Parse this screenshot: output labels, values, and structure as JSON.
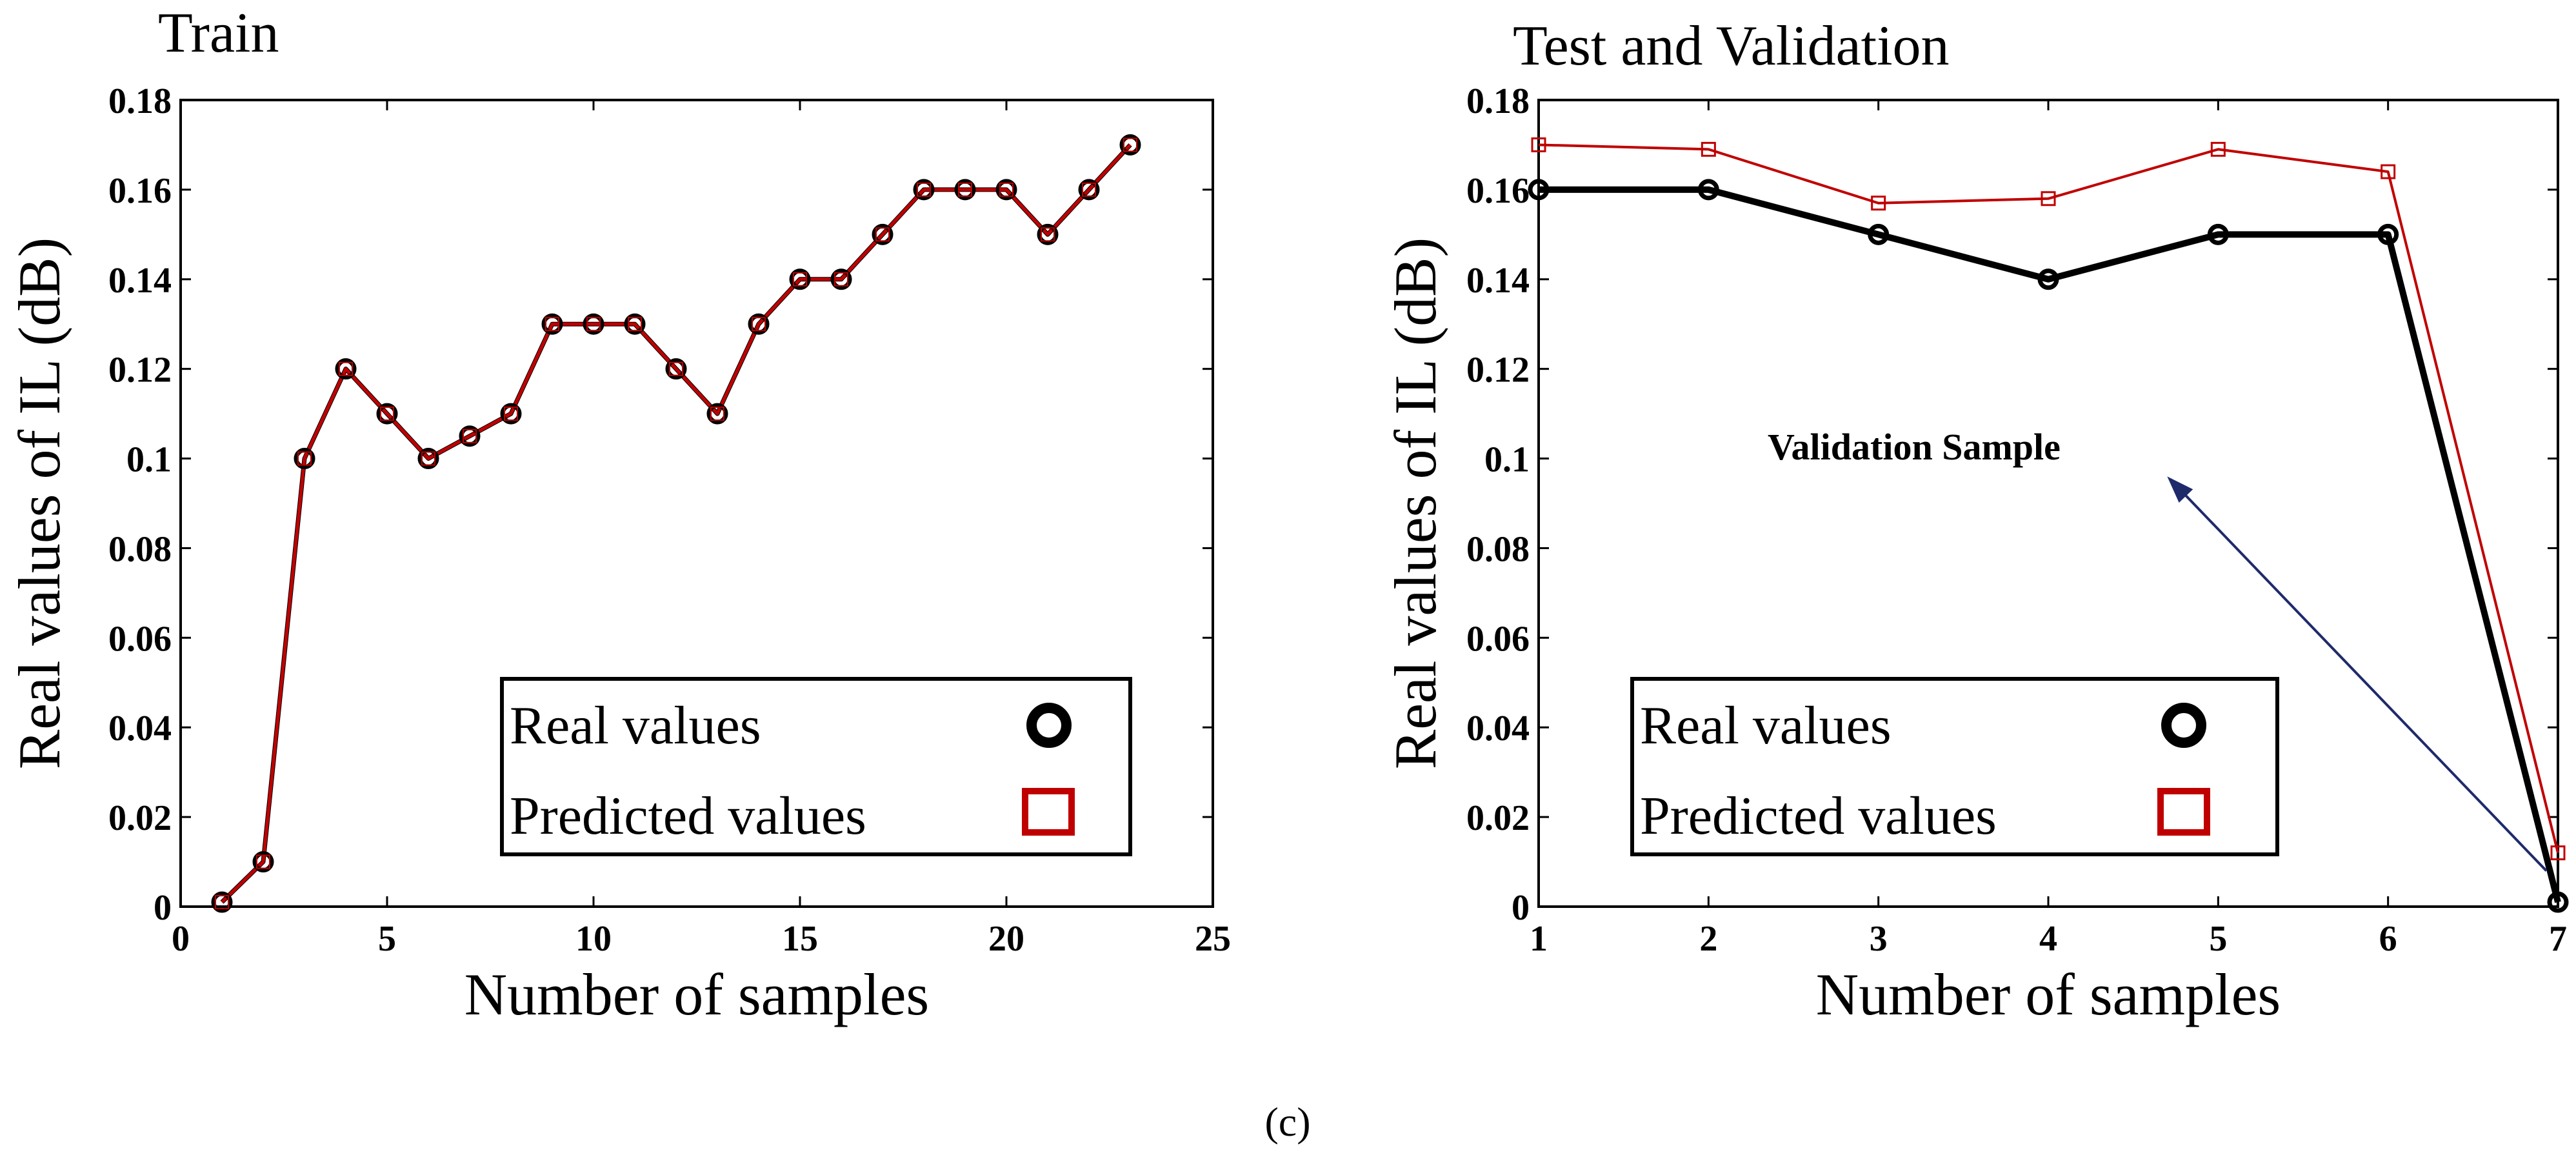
{
  "figure": {
    "caption": "(c)"
  },
  "colors": {
    "real": "#000000",
    "predicted": "#c00000",
    "arrow": "#1f2a6b"
  },
  "chart_data": [
    {
      "type": "line",
      "title": "Train",
      "xlabel": "Number of samples",
      "ylabel": "Real values of  IL (dB)",
      "xlim": [
        0,
        25
      ],
      "ylim": [
        0,
        0.18
      ],
      "xticks": [
        "0",
        "5",
        "10",
        "15",
        "20",
        "25"
      ],
      "xtick_values": [
        0,
        5,
        10,
        15,
        20,
        25
      ],
      "yticks": [
        "0",
        "0.02",
        "0.04",
        "0.06",
        "0.08",
        "0.1",
        "0.12",
        "0.14",
        "0.16",
        "0.18"
      ],
      "ytick_values": [
        0,
        0.02,
        0.04,
        0.06,
        0.08,
        0.1,
        0.12,
        0.14,
        0.16,
        0.18
      ],
      "grid": false,
      "legend_position": "bottom-right",
      "x": [
        1,
        2,
        3,
        4,
        5,
        6,
        7,
        8,
        9,
        10,
        11,
        12,
        13,
        14,
        15,
        16,
        17,
        18,
        19,
        20,
        21,
        22,
        23
      ],
      "series": [
        {
          "name": "Real values",
          "marker": "circle",
          "values": [
            0.001,
            0.01,
            0.1,
            0.12,
            0.11,
            0.1,
            0.105,
            0.11,
            0.13,
            0.13,
            0.13,
            0.12,
            0.11,
            0.13,
            0.14,
            0.14,
            0.15,
            0.16,
            0.16,
            0.16,
            0.15,
            0.16,
            0.17
          ]
        },
        {
          "name": "Predicted values",
          "marker": "square",
          "values": [
            0.001,
            0.01,
            0.1,
            0.12,
            0.11,
            0.1,
            0.105,
            0.11,
            0.13,
            0.13,
            0.13,
            0.12,
            0.11,
            0.13,
            0.14,
            0.14,
            0.15,
            0.16,
            0.16,
            0.16,
            0.15,
            0.16,
            0.17
          ]
        }
      ]
    },
    {
      "type": "line",
      "title": "Test and Validation",
      "xlabel": "Number of samples",
      "ylabel": "Real values of  IL (dB)",
      "xlim": [
        1,
        7
      ],
      "ylim": [
        0,
        0.18
      ],
      "xticks": [
        "1",
        "2",
        "3",
        "4",
        "5",
        "6",
        "7"
      ],
      "xtick_values": [
        1,
        2,
        3,
        4,
        5,
        6,
        7
      ],
      "yticks": [
        "0",
        "0.02",
        "0.04",
        "0.06",
        "0.08",
        "0.1",
        "0.12",
        "0.14",
        "0.16",
        "0.18"
      ],
      "ytick_values": [
        0,
        0.02,
        0.04,
        0.06,
        0.08,
        0.1,
        0.12,
        0.14,
        0.16,
        0.18
      ],
      "grid": false,
      "legend_position": "bottom-right",
      "x": [
        1,
        2,
        3,
        4,
        5,
        6,
        7
      ],
      "series": [
        {
          "name": "Real values",
          "marker": "circle",
          "values": [
            0.16,
            0.16,
            0.15,
            0.14,
            0.15,
            0.15,
            0.001
          ]
        },
        {
          "name": "Predicted values",
          "marker": "square",
          "values": [
            0.17,
            0.169,
            0.157,
            0.158,
            0.169,
            0.164,
            0.012
          ]
        }
      ],
      "annotation": {
        "text": "Validation Sample",
        "from": [
          7,
          0.008
        ],
        "to": [
          4.7,
          0.096
        ]
      }
    }
  ]
}
